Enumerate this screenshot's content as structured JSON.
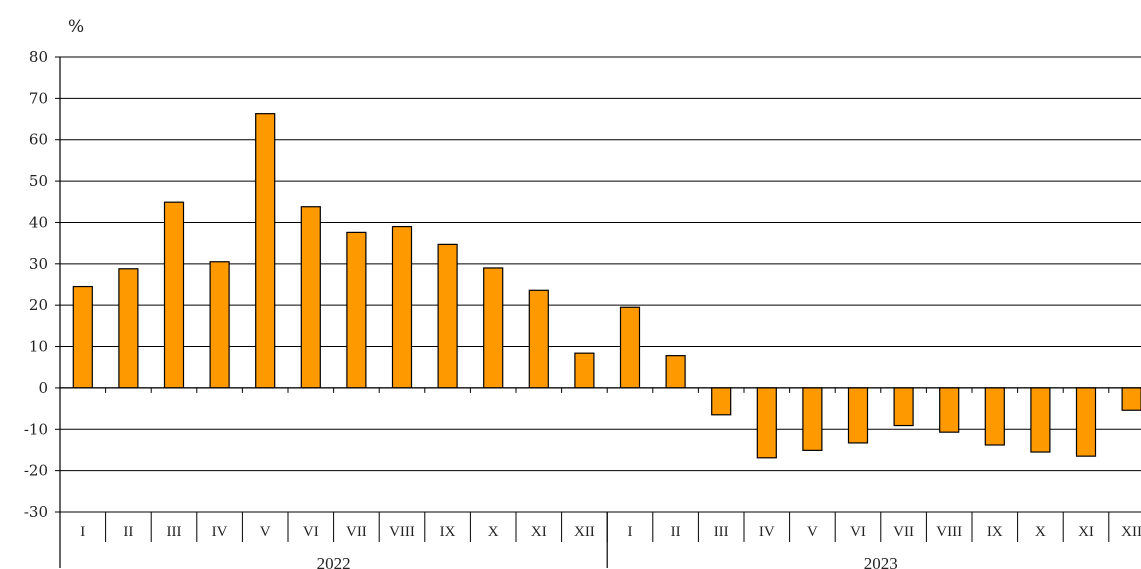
{
  "chart_data": {
    "type": "bar",
    "ylabel": "%",
    "ylim": [
      -30,
      80
    ],
    "yticks": [
      80,
      70,
      60,
      50,
      40,
      30,
      20,
      10,
      0,
      -10,
      -20,
      -30
    ],
    "grid": true,
    "bar_color": "#FF9900",
    "bar_outline": "#000000",
    "categories": [
      "I",
      "II",
      "III",
      "IV",
      "V",
      "VI",
      "VII",
      "VIII",
      "IX",
      "X",
      "XI",
      "XII",
      "I",
      "II",
      "III",
      "IV",
      "V",
      "VI",
      "VII",
      "VIII",
      "IX",
      "X",
      "XI",
      "XII"
    ],
    "groups": [
      {
        "label": "2022",
        "count": 12
      },
      {
        "label": "2023",
        "count": 12
      }
    ],
    "values": [
      24.5,
      28.8,
      44.9,
      30.5,
      66.3,
      43.8,
      37.6,
      39.0,
      34.7,
      29.0,
      23.6,
      8.4,
      19.5,
      7.8,
      -6.5,
      -16.9,
      -15.1,
      -13.3,
      -9.1,
      -10.7,
      -13.8,
      -15.5,
      -16.5,
      -5.4
    ]
  }
}
